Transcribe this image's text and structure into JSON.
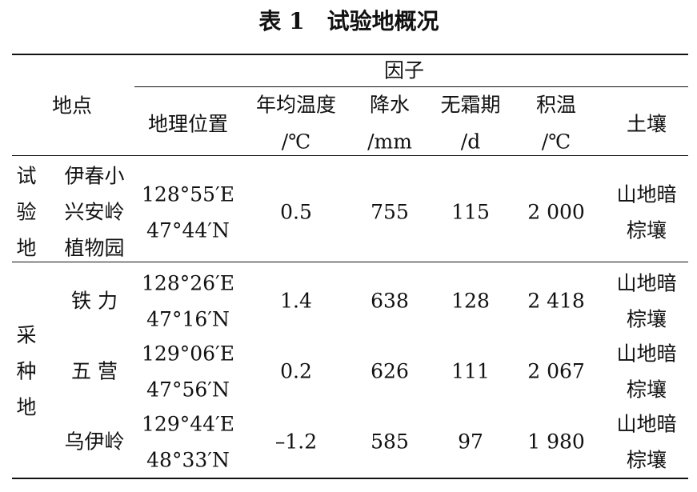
{
  "title": "表 1　试验地概况",
  "header": {
    "location": "地点",
    "factor": "因子",
    "columns": [
      {
        "name": "地理位置"
      },
      {
        "name": "年均温度",
        "unit": "/℃"
      },
      {
        "name": "降水",
        "unit": "/mm"
      },
      {
        "name": "无霜期",
        "unit": "/d"
      },
      {
        "name": "积温",
        "unit": "/℃"
      },
      {
        "name": "土壤"
      }
    ]
  },
  "groups": [
    {
      "name": "试验地",
      "sites": [
        {
          "name": [
            "伊春小",
            "兴安岭",
            "植物园"
          ],
          "coords": [
            "128°55′E",
            "47°44′N"
          ],
          "temperature": "0.5",
          "precipitation": "755",
          "frost_free": "115",
          "accumulated_temp": "2 000",
          "soil": [
            "山地暗",
            "棕壤"
          ]
        }
      ]
    },
    {
      "name": "采种地",
      "sites": [
        {
          "name": [
            "铁 力"
          ],
          "coords": [
            "128°26′E",
            "47°16′N"
          ],
          "temperature": "1.4",
          "precipitation": "638",
          "frost_free": "128",
          "accumulated_temp": "2 418",
          "soil": [
            "山地暗",
            "棕壤"
          ]
        },
        {
          "name": [
            "五 营"
          ],
          "coords": [
            "129°06′E",
            "47°56′N"
          ],
          "temperature": "0.2",
          "precipitation": "626",
          "frost_free": "111",
          "accumulated_temp": "2 067",
          "soil": [
            "山地暗",
            "棕壤"
          ]
        },
        {
          "name": [
            "乌伊岭"
          ],
          "coords": [
            "129°44′E",
            "48°33′N"
          ],
          "temperature": "–1.2",
          "precipitation": "585",
          "frost_free": "97",
          "accumulated_temp": "1 980",
          "soil": [
            "山地暗",
            "棕壤"
          ]
        }
      ]
    }
  ]
}
